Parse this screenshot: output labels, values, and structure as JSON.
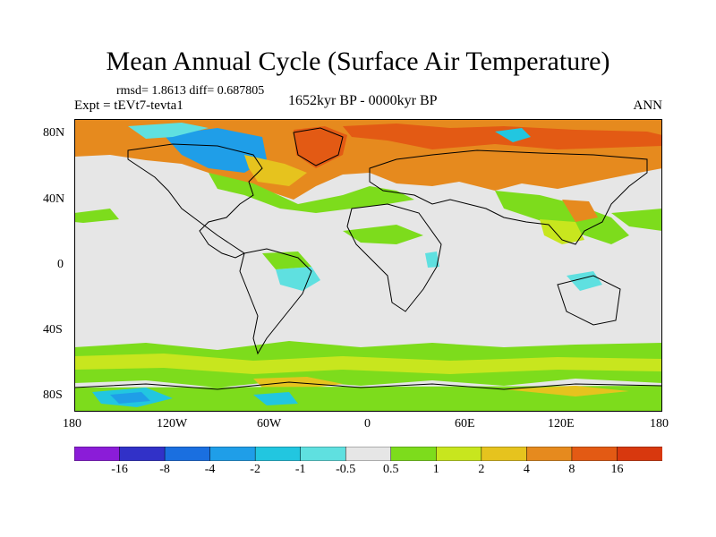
{
  "title": "Mean Annual Cycle (Surface Air Temperature)",
  "stats": "rmsd= 1.8613 diff= 0.687805",
  "experiment": "Expt = tEVt7-tevta1",
  "period": "1652kyr BP - 0000kyr BP",
  "season": "ANN",
  "lat_ticks": [
    "80N",
    "40N",
    "0",
    "40S",
    "80S"
  ],
  "lon_ticks": [
    "180",
    "120W",
    "60W",
    "0",
    "60E",
    "120E",
    "180"
  ],
  "colorbar": {
    "labels": [
      "-16",
      "-8",
      "-4",
      "-2",
      "-1",
      "-0.5",
      "0.5",
      "1",
      "2",
      "4",
      "8",
      "16"
    ],
    "colors": [
      "#8b1cd8",
      "#3131c8",
      "#1a6fe0",
      "#1f9ee8",
      "#22c6e0",
      "#5fe0e0",
      "#e6e6e6",
      "#7ddc1c",
      "#c8e61e",
      "#e6c31e",
      "#e68a1e",
      "#e35a14",
      "#d8380e"
    ]
  },
  "colors": {
    "ocean_background": "#e6e6e6",
    "coastline": "#000000"
  }
}
